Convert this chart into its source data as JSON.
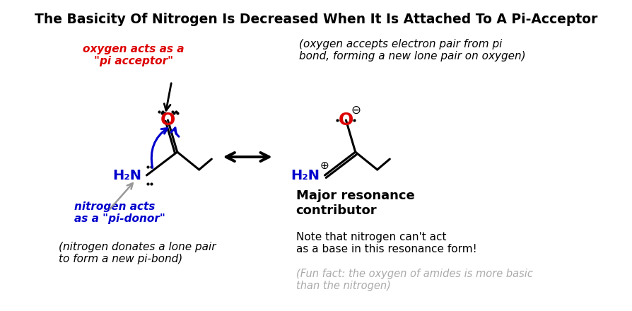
{
  "title": "The Basicity Of Nitrogen Is Decreased When It Is Attached To A Pi-Acceptor",
  "bg_color": "#ffffff",
  "title_fontsize": 13.5,
  "title_color": "#000000",
  "red_label": "oxygen acts as a\n\"pi acceptor\"",
  "red_label_color": "#dd0000",
  "italic_top_right": "(oxygen accepts electron pair from pi\nbond, forming a new lone pair on oxygen)",
  "blue_label": "nitrogen acts\nas a \"pi-donor\"",
  "blue_label_color": "#0000cc",
  "italic_bottom_left": "(nitrogen donates a lone pair\nto form a new pi-bond)",
  "bold_label": "Major resonance\ncontributor",
  "note_text": "Note that nitrogen can't act\nas a base in this resonance form!",
  "fun_fact": "(Fun fact: the oxygen of amides is more basic\nthan the nitrogen)",
  "fun_fact_color": "#aaaaaa"
}
